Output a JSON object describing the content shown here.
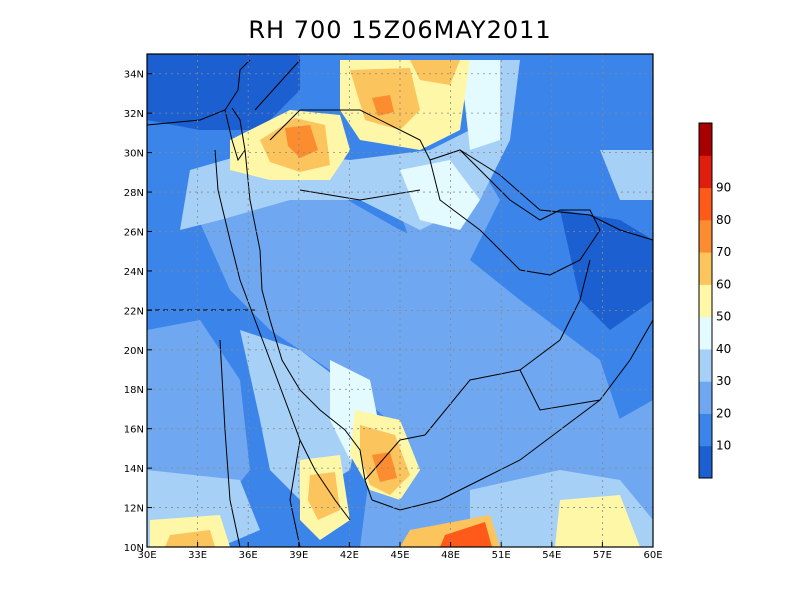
{
  "title": "RH 700 15Z06MAY2011",
  "map": {
    "lon_range": [
      30,
      60
    ],
    "lat_range": [
      10,
      35
    ],
    "x_ticks": [
      "30E",
      "33E",
      "36E",
      "39E",
      "42E",
      "45E",
      "48E",
      "51E",
      "54E",
      "57E",
      "60E"
    ],
    "y_ticks": [
      "10N",
      "12N",
      "14N",
      "16N",
      "18N",
      "20N",
      "22N",
      "24N",
      "26N",
      "28N",
      "30N",
      "32N",
      "34N"
    ],
    "grid": "dotted"
  },
  "colorbar": {
    "labels": [
      "10",
      "20",
      "30",
      "40",
      "50",
      "60",
      "70",
      "80",
      "90"
    ],
    "colors": [
      "#1c5fd0",
      "#3a84ea",
      "#6fa8f0",
      "#a7d0f7",
      "#e3fbff",
      "#fff7a8",
      "#fcc45c",
      "#fb8c30",
      "#ff5a1a",
      "#e01e0e",
      "#a80000"
    ]
  },
  "color_key": {
    "ocean_deep": "#1c5fd0",
    "mid_blue": "#3a84ea",
    "light_blue": "#6fa8f0",
    "pale_blue": "#a7d0f7",
    "very_pale": "#e3fbff",
    "yellow": "#fff7a8",
    "orange": "#fcc45c",
    "dark_orange": "#fb8c30",
    "red": "#ff5a1a"
  }
}
